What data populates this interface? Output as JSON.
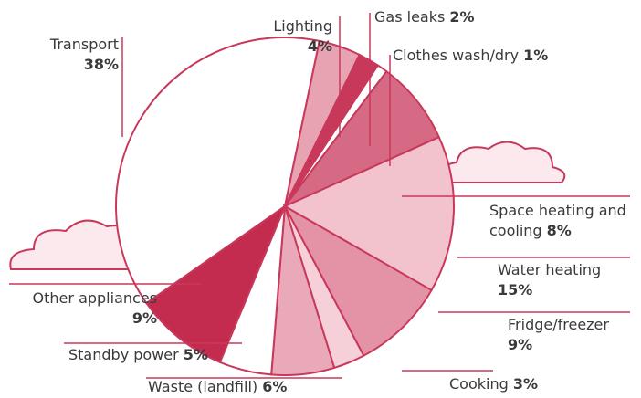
{
  "chart_data": {
    "type": "pie",
    "categories": [
      "Transport",
      "Lighting",
      "Gas leaks",
      "Clothes wash/dry",
      "Space heating and cooling",
      "Water heating",
      "Fridge/freezer",
      "Cooking",
      "Waste (landfill)",
      "Standby power",
      "Other appliances"
    ],
    "values": [
      38,
      4,
      2,
      1,
      8,
      15,
      9,
      3,
      6,
      5,
      9
    ],
    "value_labels": [
      "38%",
      "4%",
      "2%",
      "1%",
      "8%",
      "15%",
      "9%",
      "3%",
      "6%",
      "5%",
      "9%"
    ],
    "colors": [
      "#ffffff",
      "#e8a3b3",
      "#c8385a",
      "#ffffff",
      "#d66a85",
      "#f2c2cd",
      "#e493a7",
      "#f5d0d9",
      "#eaa9b8",
      "#ffffff",
      "#c42c4f"
    ]
  }
}
